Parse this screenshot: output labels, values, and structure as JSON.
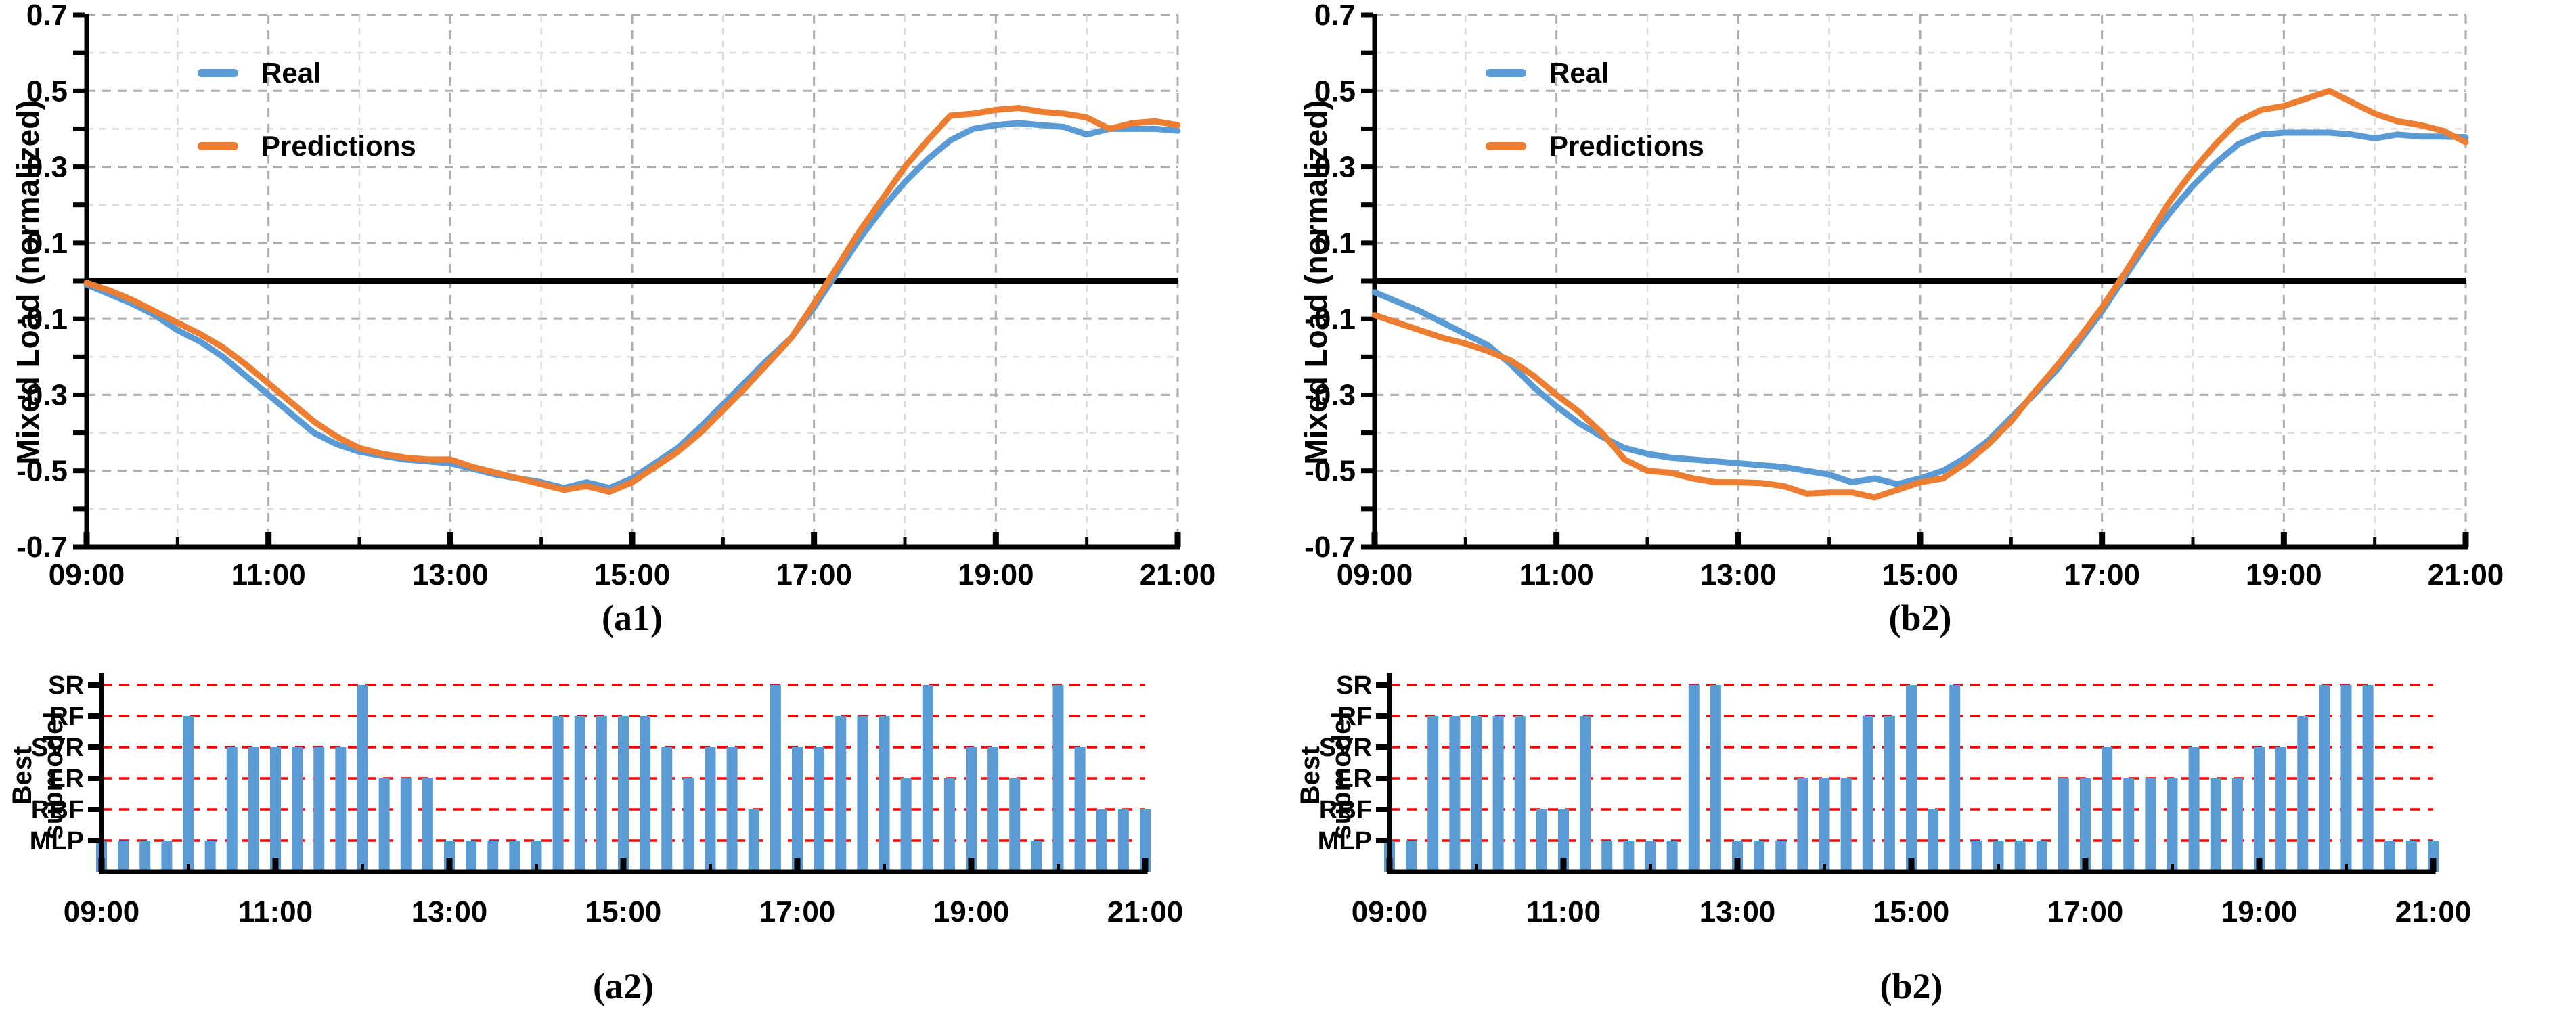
{
  "figure": {
    "background": "#ffffff",
    "text_color": "#000000",
    "panel_captions": [
      "(a1)",
      "(b2)",
      "(a2)",
      "(b2)"
    ]
  },
  "colors": {
    "real_blue": "#5B9BD5",
    "predictions_orange": "#ED7D31",
    "red_gridline": "#FF0000",
    "major_gridline": "#ADADAD",
    "minor_gridline": "#DCDCDC",
    "axis_black": "#000000"
  },
  "chart_data": [
    {
      "id": "a1",
      "type": "line",
      "caption": "(a1)",
      "xlabel": "",
      "ylabel": "Mixed Load (normalized)",
      "ylim": [
        -0.7,
        0.7
      ],
      "grid": "on",
      "legend_position": "upper-left-inside",
      "x_tick_labels": [
        "09:00",
        "11:00",
        "13:00",
        "15:00",
        "17:00",
        "19:00",
        "21:00"
      ],
      "y_tick_labels": [
        "0.7",
        "0.5",
        "0.3",
        "0.1",
        "-0.1",
        "-0.3",
        "-0.5",
        "-0.7"
      ],
      "y_tick_values": [
        0.7,
        0.5,
        0.3,
        0.1,
        -0.1,
        -0.3,
        -0.5,
        -0.7
      ],
      "categories": [
        "09:00",
        "09:15",
        "09:30",
        "09:45",
        "10:00",
        "10:15",
        "10:30",
        "10:45",
        "11:00",
        "11:15",
        "11:30",
        "11:45",
        "12:00",
        "12:15",
        "12:30",
        "12:45",
        "13:00",
        "13:15",
        "13:30",
        "13:45",
        "14:00",
        "14:15",
        "14:30",
        "14:45",
        "15:00",
        "15:15",
        "15:30",
        "15:45",
        "16:00",
        "16:15",
        "16:30",
        "16:45",
        "17:00",
        "17:15",
        "17:30",
        "17:45",
        "18:00",
        "18:15",
        "18:30",
        "18:45",
        "19:00",
        "19:15",
        "19:30",
        "19:45",
        "20:00",
        "20:15",
        "20:30",
        "20:45",
        "21:00"
      ],
      "series": [
        {
          "name": "Real",
          "color": "#5B9BD5",
          "values": [
            -0.01,
            -0.035,
            -0.06,
            -0.09,
            -0.13,
            -0.16,
            -0.2,
            -0.25,
            -0.3,
            -0.35,
            -0.4,
            -0.43,
            -0.45,
            -0.46,
            -0.47,
            -0.475,
            -0.48,
            -0.495,
            -0.51,
            -0.52,
            -0.53,
            -0.545,
            -0.53,
            -0.545,
            -0.52,
            -0.48,
            -0.44,
            -0.385,
            -0.325,
            -0.265,
            -0.205,
            -0.15,
            -0.07,
            0.02,
            0.11,
            0.19,
            0.26,
            0.32,
            0.37,
            0.4,
            0.41,
            0.415,
            0.41,
            0.405,
            0.385,
            0.4,
            0.4,
            0.4,
            0.395
          ]
        },
        {
          "name": "Predictions",
          "color": "#ED7D31",
          "values": [
            -0.005,
            -0.025,
            -0.05,
            -0.08,
            -0.11,
            -0.14,
            -0.175,
            -0.22,
            -0.27,
            -0.32,
            -0.37,
            -0.41,
            -0.44,
            -0.455,
            -0.465,
            -0.47,
            -0.47,
            -0.49,
            -0.505,
            -0.52,
            -0.535,
            -0.55,
            -0.54,
            -0.555,
            -0.53,
            -0.49,
            -0.45,
            -0.4,
            -0.34,
            -0.28,
            -0.215,
            -0.15,
            -0.06,
            0.035,
            0.13,
            0.215,
            0.3,
            0.37,
            0.435,
            0.44,
            0.45,
            0.455,
            0.445,
            0.44,
            0.43,
            0.4,
            0.415,
            0.42,
            0.41
          ]
        }
      ]
    },
    {
      "id": "b2_top",
      "type": "line",
      "caption": "(b2)",
      "xlabel": "",
      "ylabel": "Mixed Load (normalized)",
      "ylim": [
        -0.7,
        0.7
      ],
      "grid": "on",
      "legend_position": "upper-left-inside",
      "x_tick_labels": [
        "09:00",
        "11:00",
        "13:00",
        "15:00",
        "17:00",
        "19:00",
        "21:00"
      ],
      "y_tick_labels": [
        "0.7",
        "0.5",
        "0.3",
        "0.1",
        "-0.1",
        "-0.3",
        "-0.5",
        "-0.7"
      ],
      "y_tick_values": [
        0.7,
        0.5,
        0.3,
        0.1,
        -0.1,
        -0.3,
        -0.5,
        -0.7
      ],
      "categories": [
        "09:00",
        "09:15",
        "09:30",
        "09:45",
        "10:00",
        "10:15",
        "10:30",
        "10:45",
        "11:00",
        "11:15",
        "11:30",
        "11:45",
        "12:00",
        "12:15",
        "12:30",
        "12:45",
        "13:00",
        "13:15",
        "13:30",
        "13:45",
        "14:00",
        "14:15",
        "14:30",
        "14:45",
        "15:00",
        "15:15",
        "15:30",
        "15:45",
        "16:00",
        "16:15",
        "16:30",
        "16:45",
        "17:00",
        "17:15",
        "17:30",
        "17:45",
        "18:00",
        "18:15",
        "18:30",
        "18:45",
        "19:00",
        "19:15",
        "19:30",
        "19:45",
        "20:00",
        "20:15",
        "20:30",
        "20:45",
        "21:00"
      ],
      "series": [
        {
          "name": "Real",
          "color": "#5B9BD5",
          "values": [
            -0.03,
            -0.055,
            -0.08,
            -0.11,
            -0.14,
            -0.17,
            -0.22,
            -0.28,
            -0.33,
            -0.375,
            -0.41,
            -0.44,
            -0.455,
            -0.465,
            -0.47,
            -0.475,
            -0.48,
            -0.485,
            -0.49,
            -0.5,
            -0.51,
            -0.53,
            -0.52,
            -0.535,
            -0.52,
            -0.5,
            -0.465,
            -0.42,
            -0.36,
            -0.3,
            -0.235,
            -0.16,
            -0.08,
            0.01,
            0.1,
            0.18,
            0.25,
            0.31,
            0.36,
            0.385,
            0.39,
            0.39,
            0.39,
            0.385,
            0.375,
            0.385,
            0.38,
            0.38,
            0.378
          ]
        },
        {
          "name": "Predictions",
          "color": "#ED7D31",
          "values": [
            -0.09,
            -0.11,
            -0.13,
            -0.15,
            -0.165,
            -0.185,
            -0.21,
            -0.25,
            -0.3,
            -0.345,
            -0.4,
            -0.47,
            -0.5,
            -0.505,
            -0.52,
            -0.53,
            -0.53,
            -0.532,
            -0.54,
            -0.56,
            -0.557,
            -0.557,
            -0.57,
            -0.55,
            -0.53,
            -0.52,
            -0.48,
            -0.43,
            -0.37,
            -0.295,
            -0.225,
            -0.15,
            -0.07,
            0.02,
            0.115,
            0.21,
            0.29,
            0.36,
            0.42,
            0.45,
            0.46,
            0.48,
            0.5,
            0.47,
            0.44,
            0.42,
            0.41,
            0.395,
            0.365
          ]
        }
      ]
    },
    {
      "id": "a2",
      "type": "bar",
      "caption": "(a2)",
      "xlabel": "",
      "ylabel": "Best submodel",
      "ylabel_line1": "Best",
      "ylabel_line2": "submodel",
      "bar_color": "#5B9BD5",
      "gridline_color": "#FF0000",
      "grid": "on",
      "x_tick_labels": [
        "09:00",
        "11:00",
        "13:00",
        "15:00",
        "17:00",
        "19:00",
        "21:00"
      ],
      "y_categories": [
        "MLP",
        "RBF",
        "LR",
        "SVR",
        "RF",
        "SR"
      ],
      "categories": [
        "09:00",
        "09:15",
        "09:30",
        "09:45",
        "10:00",
        "10:15",
        "10:30",
        "10:45",
        "11:00",
        "11:15",
        "11:30",
        "11:45",
        "12:00",
        "12:15",
        "12:30",
        "12:45",
        "13:00",
        "13:15",
        "13:30",
        "13:45",
        "14:00",
        "14:15",
        "14:30",
        "14:45",
        "15:00",
        "15:15",
        "15:30",
        "15:45",
        "16:00",
        "16:15",
        "16:30",
        "16:45",
        "17:00",
        "17:15",
        "17:30",
        "17:45",
        "18:00",
        "18:15",
        "18:30",
        "18:45",
        "19:00",
        "19:15",
        "19:30",
        "19:45",
        "20:00",
        "20:15",
        "20:30",
        "20:45",
        "21:00"
      ],
      "values": [
        "MLP",
        "MLP",
        "MLP",
        "MLP",
        "RF",
        "MLP",
        "SVR",
        "SVR",
        "SVR",
        "SVR",
        "SVR",
        "SVR",
        "SR",
        "LR",
        "LR",
        "LR",
        "MLP",
        "MLP",
        "MLP",
        "MLP",
        "MLP",
        "RF",
        "RF",
        "RF",
        "RF",
        "RF",
        "SVR",
        "LR",
        "SVR",
        "SVR",
        "RBF",
        "SR",
        "SVR",
        "SVR",
        "RF",
        "RF",
        "RF",
        "LR",
        "SR",
        "LR",
        "SVR",
        "SVR",
        "LR",
        "MLP",
        "SR",
        "SVR",
        "RBF",
        "RBF",
        "RBF"
      ]
    },
    {
      "id": "b2_bottom",
      "type": "bar",
      "caption": "(b2)",
      "xlabel": "",
      "ylabel": "Best submodel",
      "ylabel_line1": "Best",
      "ylabel_line2": "submodel",
      "bar_color": "#5B9BD5",
      "gridline_color": "#FF0000",
      "grid": "on",
      "x_tick_labels": [
        "09:00",
        "11:00",
        "13:00",
        "15:00",
        "17:00",
        "19:00",
        "21:00"
      ],
      "y_categories": [
        "MLP",
        "RBF",
        "LR",
        "SVR",
        "RF",
        "SR"
      ],
      "categories": [
        "09:00",
        "09:15",
        "09:30",
        "09:45",
        "10:00",
        "10:15",
        "10:30",
        "10:45",
        "11:00",
        "11:15",
        "11:30",
        "11:45",
        "12:00",
        "12:15",
        "12:30",
        "12:45",
        "13:00",
        "13:15",
        "13:30",
        "13:45",
        "14:00",
        "14:15",
        "14:30",
        "14:45",
        "15:00",
        "15:15",
        "15:30",
        "15:45",
        "16:00",
        "16:15",
        "16:30",
        "16:45",
        "17:00",
        "17:15",
        "17:30",
        "17:45",
        "18:00",
        "18:15",
        "18:30",
        "18:45",
        "19:00",
        "19:15",
        "19:30",
        "19:45",
        "20:00",
        "20:15",
        "20:30",
        "20:45",
        "21:00"
      ],
      "values": [
        "MLP",
        "MLP",
        "RF",
        "RF",
        "RF",
        "RF",
        "RF",
        "RBF",
        "RBF",
        "RF",
        "MLP",
        "MLP",
        "MLP",
        "MLP",
        "SR",
        "SR",
        "MLP",
        "MLP",
        "MLP",
        "LR",
        "LR",
        "LR",
        "RF",
        "RF",
        "SR",
        "RBF",
        "SR",
        "MLP",
        "MLP",
        "MLP",
        "MLP",
        "LR",
        "LR",
        "SVR",
        "LR",
        "LR",
        "LR",
        "SVR",
        "LR",
        "LR",
        "SVR",
        "SVR",
        "RF",
        "SR",
        "SR",
        "SR",
        "MLP",
        "MLP",
        "MLP"
      ]
    }
  ]
}
